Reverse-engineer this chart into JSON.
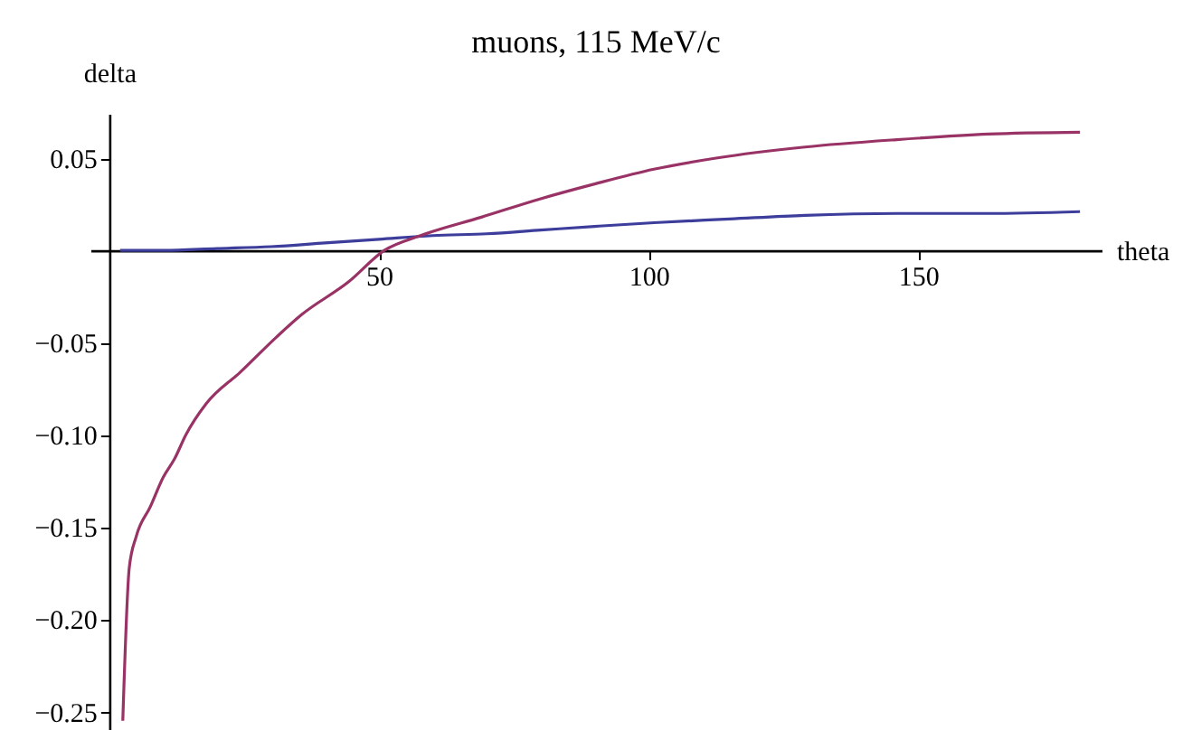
{
  "chart_data": {
    "type": "line",
    "title": "muons, 115 MeV/c",
    "xlabel": "theta",
    "ylabel": "delta",
    "xlim": [
      -3.5,
      184
    ],
    "ylim": [
      -0.26,
      0.074
    ],
    "xticks": [
      50,
      100,
      150
    ],
    "yticks": [
      -0.25,
      {
        "value": -0.2,
        "label": "−0.20"
      },
      -0.15,
      {
        "value": -0.1,
        "label": "−0.10"
      },
      -0.05,
      0.05
    ],
    "series": [
      {
        "color": "#3d3d9c",
        "x": [
          2,
          10,
          20,
          30,
          40,
          50,
          60,
          70,
          80,
          90,
          101,
          115,
          129,
          146,
          163,
          180
        ],
        "values": [
          0,
          0,
          0.001,
          0.002,
          0.004,
          0.006,
          0.008,
          0.009,
          0.011,
          0.013,
          0.015,
          0.017,
          0.019,
          0.02,
          0.02,
          0.021
        ]
      },
      {
        "color": "#993366",
        "x": [
          2.5,
          3.7,
          5,
          7.6,
          10,
          12.1,
          14.2,
          18,
          24.3,
          31,
          35.6,
          44.4,
          51,
          57.7,
          69,
          80,
          90,
          101,
          112.5,
          129,
          146,
          163,
          180
        ],
        "values": [
          -0.255,
          -0.172,
          -0.155,
          -0.139,
          -0.123,
          -0.113,
          -0.1,
          -0.083,
          -0.066,
          -0.047,
          -0.035,
          -0.017,
          0,
          0.008,
          0.018,
          0.028,
          0.036,
          0.044,
          0.05,
          0.056,
          0.06,
          0.063,
          0.064
        ]
      }
    ]
  }
}
